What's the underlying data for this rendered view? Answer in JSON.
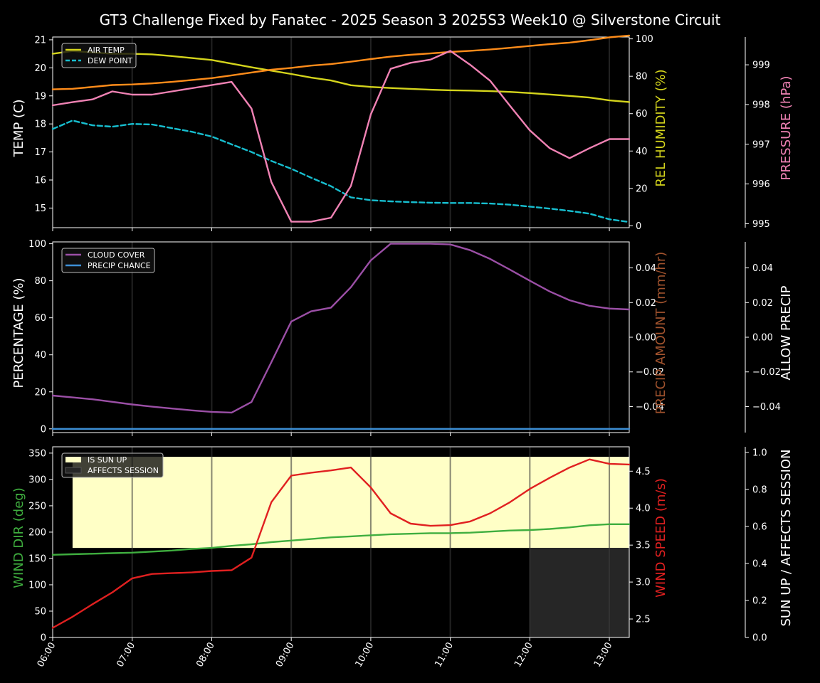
{
  "title": "GT3 Challenge Fixed by Fanatec - 2025 Season 3 2025S3 Week10 @ Silverstone Circuit",
  "colors": {
    "air_temp": "#d4d41c",
    "dew_point": "#17becf",
    "humidity": "#ff8c1a",
    "pressure": "#f082b4",
    "cloud": "#9b4fa6",
    "precip_chance": "#3d8fd6",
    "precip_amount": "#a0522d",
    "wind_dir": "#3fae3f",
    "wind_speed": "#e02020",
    "sun_up": "#ffffc6",
    "affects_session": "#262626"
  },
  "x_tick_labels": [
    "06:00",
    "07:00",
    "08:00",
    "09:00",
    "10:00",
    "11:00",
    "12:00",
    "13:00"
  ],
  "chart_data": [
    {
      "type": "line",
      "panel": "weather-temperature",
      "x": [
        6.0,
        6.25,
        6.5,
        6.75,
        7.0,
        7.25,
        7.5,
        7.75,
        8.0,
        8.25,
        8.5,
        8.75,
        9.0,
        9.25,
        9.5,
        9.75,
        10.0,
        10.25,
        10.5,
        10.75,
        11.0,
        11.25,
        11.5,
        11.75,
        12.0,
        12.25,
        12.5,
        12.75,
        13.0,
        13.25
      ],
      "xlim": [
        6.0,
        13.25
      ],
      "left_axis": {
        "label": "TEMP (C)",
        "ylim": [
          14.3,
          21.1
        ],
        "ticks": [
          "15",
          "16",
          "17",
          "18",
          "19",
          "20",
          "21"
        ]
      },
      "right_axis_1": {
        "label": "REL HUMIDITY (%)",
        "ylim": [
          -1,
          101
        ],
        "ticks": [
          "0",
          "20",
          "40",
          "60",
          "80",
          "100"
        ]
      },
      "right_axis_2": {
        "label": "PRESSURE (hPa)",
        "ylim": [
          994.9,
          999.7
        ],
        "ticks": [
          "995",
          "996",
          "997",
          "998",
          "999"
        ]
      },
      "legend_position": "top-left",
      "series": [
        {
          "name": "AIR TEMP",
          "axis": "left",
          "style": "solid",
          "values": [
            20.5,
            20.6,
            20.55,
            20.5,
            20.5,
            20.48,
            20.42,
            20.35,
            20.28,
            20.15,
            20.02,
            19.9,
            19.78,
            19.65,
            19.55,
            19.38,
            19.32,
            19.28,
            19.25,
            19.22,
            19.2,
            19.19,
            19.17,
            19.14,
            19.1,
            19.05,
            19.0,
            18.94,
            18.84,
            18.78
          ]
        },
        {
          "name": "DEW POINT",
          "axis": "left",
          "style": "dashed",
          "values": [
            17.82,
            18.12,
            17.95,
            17.9,
            18.0,
            17.98,
            17.85,
            17.72,
            17.55,
            17.27,
            17.0,
            16.68,
            16.4,
            16.08,
            15.78,
            15.38,
            15.28,
            15.24,
            15.21,
            15.19,
            15.18,
            15.18,
            15.16,
            15.12,
            15.05,
            14.98,
            14.9,
            14.8,
            14.6,
            14.5
          ]
        },
        {
          "axis": "right_1",
          "style": "solid",
          "values": [
            73,
            73.3,
            74.3,
            75.3,
            75.6,
            76.2,
            77,
            78,
            79,
            80.5,
            82,
            83.5,
            84.5,
            85.7,
            86.5,
            87.8,
            89.2,
            90.5,
            91.5,
            92.2,
            93,
            93.6,
            94.3,
            95.2,
            96.2,
            97.2,
            98,
            99.3,
            100.8,
            101.8
          ]
        },
        {
          "axis": "right_2",
          "style": "solid",
          "values": [
            997.98,
            998.06,
            998.13,
            998.33,
            998.25,
            998.25,
            998.33,
            998.41,
            998.49,
            998.57,
            997.9,
            996.05,
            995.05,
            995.05,
            995.15,
            995.95,
            997.75,
            998.9,
            999.05,
            999.13,
            999.35,
            999.0,
            998.6,
            997.97,
            997.35,
            996.9,
            996.65,
            996.9,
            997.13,
            997.13
          ]
        }
      ]
    },
    {
      "type": "line",
      "panel": "clouds-precip",
      "x": [
        6.0,
        6.25,
        6.5,
        6.75,
        7.0,
        7.25,
        7.5,
        7.75,
        8.0,
        8.25,
        8.5,
        8.75,
        9.0,
        9.25,
        9.5,
        9.75,
        10.0,
        10.25,
        10.5,
        10.75,
        11.0,
        11.25,
        11.5,
        11.75,
        12.0,
        12.25,
        12.5,
        12.75,
        13.0,
        13.25
      ],
      "xlim": [
        6.0,
        13.25
      ],
      "left_axis": {
        "label": "PERCENTAGE (%)",
        "ylim": [
          -2,
          101
        ],
        "ticks": [
          "0",
          "20",
          "40",
          "60",
          "80",
          "100"
        ]
      },
      "right_axis_1": {
        "label": "PRECIP AMOUNT (mm/hr)",
        "ylim": [
          -0.055,
          0.055
        ],
        "ticks": [
          "−0.04",
          "−0.02",
          "0.00",
          "0.02",
          "0.04"
        ]
      },
      "right_axis_2": {
        "label": "ALLOW PRECIP",
        "ylim": [
          -0.055,
          0.055
        ],
        "ticks": [
          "−0.04",
          "−0.02",
          "0.00",
          "0.02",
          "0.04"
        ]
      },
      "legend_position": "top-left",
      "series": [
        {
          "name": "CLOUD COVER",
          "axis": "left",
          "style": "solid",
          "values": [
            18,
            17,
            16,
            14.6,
            13.2,
            12,
            11,
            10,
            9.2,
            8.8,
            14.5,
            36,
            58,
            63.5,
            65.5,
            76.5,
            91,
            100,
            100,
            100,
            99.6,
            96.5,
            91.8,
            86,
            80,
            74.2,
            69.5,
            66.5,
            65,
            64.5
          ]
        },
        {
          "name": "PRECIP CHANCE",
          "axis": "left",
          "style": "solid",
          "values": [
            0,
            0,
            0,
            0,
            0,
            0,
            0,
            0,
            0,
            0,
            0,
            0,
            0,
            0,
            0,
            0,
            0,
            0,
            0,
            0,
            0,
            0,
            0,
            0,
            0,
            0,
            0,
            0,
            0,
            0
          ]
        }
      ]
    },
    {
      "type": "line",
      "panel": "wind-sun",
      "x": [
        6.0,
        6.25,
        6.5,
        6.75,
        7.0,
        7.25,
        7.5,
        7.75,
        8.0,
        8.25,
        8.5,
        8.75,
        9.0,
        9.25,
        9.5,
        9.75,
        10.0,
        10.25,
        10.5,
        10.75,
        11.0,
        11.25,
        11.5,
        11.75,
        12.0,
        12.25,
        12.5,
        12.75,
        13.0,
        13.25
      ],
      "xlim": [
        6.0,
        13.25
      ],
      "left_axis": {
        "label": "WIND DIR (deg)",
        "ylim": [
          0,
          362
        ],
        "ticks": [
          "0",
          "50",
          "100",
          "150",
          "200",
          "250",
          "300",
          "350"
        ]
      },
      "right_axis_1": {
        "label": "WIND SPEED (m/s)",
        "ylim": [
          2.25,
          4.83
        ],
        "ticks": [
          "2.5",
          "3.0",
          "3.5",
          "4.0",
          "4.5"
        ]
      },
      "right_axis_2": {
        "label": "SUN UP / AFFECTS SESSION",
        "ylim": [
          0,
          1.03
        ],
        "ticks": [
          "0.0",
          "0.2",
          "0.4",
          "0.6",
          "0.8",
          "1.0"
        ]
      },
      "legend_position": "top-left",
      "bands": [
        {
          "name": "IS SUN UP",
          "x_start": 6.25,
          "x_end": 13.25,
          "value": 1
        },
        {
          "name": "AFFECTS SESSION",
          "x_start": 12.0,
          "x_end": 13.25,
          "value": 1
        }
      ],
      "series": [
        {
          "axis": "left",
          "style": "solid",
          "values": [
            157,
            158,
            159,
            160,
            161,
            163,
            165,
            168,
            170,
            174,
            177,
            181,
            184,
            187,
            190,
            192,
            194,
            196,
            197,
            198,
            198,
            199,
            201,
            203,
            204,
            206,
            209,
            213,
            215,
            215
          ]
        },
        {
          "axis": "right_1",
          "style": "solid",
          "values": [
            2.38,
            2.53,
            2.7,
            2.86,
            3.05,
            3.11,
            3.12,
            3.13,
            3.15,
            3.16,
            3.33,
            4.08,
            4.44,
            4.48,
            4.51,
            4.55,
            4.28,
            3.93,
            3.79,
            3.76,
            3.77,
            3.82,
            3.93,
            4.08,
            4.26,
            4.41,
            4.55,
            4.66,
            4.6,
            4.59
          ]
        }
      ]
    }
  ]
}
